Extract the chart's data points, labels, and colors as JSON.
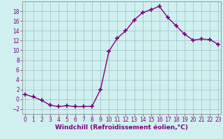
{
  "x": [
    0,
    1,
    2,
    3,
    4,
    5,
    6,
    7,
    8,
    9,
    10,
    11,
    12,
    13,
    14,
    15,
    16,
    17,
    18,
    19,
    20,
    21,
    22,
    23
  ],
  "y": [
    1,
    0.5,
    -0.2,
    -1.2,
    -1.5,
    -1.3,
    -1.5,
    -1.5,
    -1.4,
    2,
    9.8,
    12.5,
    14.0,
    16.2,
    17.7,
    18.3,
    19.0,
    16.7,
    15.0,
    13.3,
    12.1,
    12.3,
    12.2,
    11.2
  ],
  "line_color": "#800080",
  "marker": "+",
  "markersize": 4,
  "markeredgewidth": 1.2,
  "linewidth": 1.0,
  "bg_color": "#d0f0f0",
  "grid_color": "#a0c8c8",
  "xlabel": "Windchill (Refroidissement éolien,°C)",
  "xlabel_color": "#800080",
  "xlabel_fontsize": 6.5,
  "yticks": [
    -2,
    0,
    2,
    4,
    6,
    8,
    10,
    12,
    14,
    16,
    18
  ],
  "xticks": [
    0,
    1,
    2,
    3,
    4,
    5,
    6,
    7,
    8,
    9,
    10,
    11,
    12,
    13,
    14,
    15,
    16,
    17,
    18,
    19,
    20,
    21,
    22,
    23
  ],
  "ylim": [
    -3,
    20
  ],
  "xlim": [
    -0.3,
    23.3
  ],
  "tick_fontsize": 5.5,
  "tick_color": "#800080",
  "spine_color": "#999999"
}
